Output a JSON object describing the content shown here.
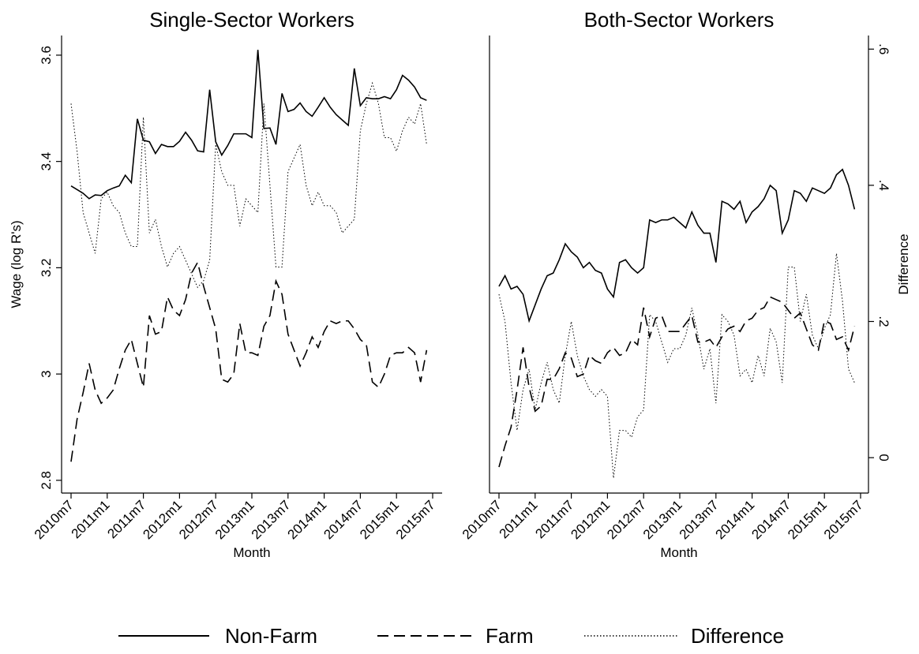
{
  "chart_data": [
    {
      "type": "line",
      "title": "Single-Sector Workers",
      "xlabel": "Month",
      "ylabel": "Wage (log R's)",
      "categories": [
        "2010m7",
        null,
        null,
        null,
        null,
        null,
        "2011m1",
        null,
        null,
        null,
        null,
        null,
        "2011m7",
        null,
        null,
        null,
        null,
        null,
        "2012m1",
        null,
        null,
        null,
        null,
        null,
        "2012m7",
        null,
        null,
        null,
        null,
        null,
        "2013m1",
        null,
        null,
        null,
        null,
        null,
        "2013m7",
        null,
        null,
        null,
        null,
        null,
        "2014m1",
        null,
        null,
        null,
        null,
        null,
        "2014m7",
        null,
        null,
        null,
        null,
        null,
        "2015m1",
        null,
        null,
        null,
        null,
        null,
        "2015m7"
      ],
      "ylim": [
        2.776,
        3.637
      ],
      "yticks": [
        2.8,
        3,
        3.2,
        3.4,
        3.6
      ],
      "y2lim": [
        -0.052,
        0.62
      ],
      "series": [
        {
          "name": "Non-Farm",
          "color": "#000000",
          "dash": "solid",
          "values": [
            3.354,
            3.347,
            3.34,
            3.33,
            3.337,
            3.336,
            3.345,
            3.35,
            3.354,
            3.374,
            3.36,
            3.48,
            3.44,
            3.437,
            3.415,
            3.432,
            3.428,
            3.428,
            3.438,
            3.455,
            3.44,
            3.42,
            3.418,
            3.535,
            3.437,
            3.412,
            3.43,
            3.452,
            3.452,
            3.452,
            3.445,
            3.61,
            3.462,
            3.463,
            3.432,
            3.528,
            3.494,
            3.498,
            3.51,
            3.494,
            3.485,
            3.502,
            3.52,
            3.502,
            3.488,
            3.478,
            3.468,
            3.575,
            3.505,
            3.52,
            3.518,
            3.518,
            3.522,
            3.518,
            3.535,
            3.562,
            3.553,
            3.54,
            3.52,
            3.515,
            null
          ]
        },
        {
          "name": "Farm",
          "color": "#000000",
          "dash": "dashed",
          "values": [
            2.835,
            2.915,
            2.965,
            3.02,
            2.97,
            2.945,
            2.955,
            2.97,
            3.01,
            3.045,
            3.065,
            3.02,
            2.975,
            3.11,
            3.075,
            3.08,
            3.145,
            3.12,
            3.11,
            3.14,
            3.19,
            3.21,
            3.165,
            3.125,
            3.085,
            2.99,
            2.985,
            3.0,
            3.095,
            3.04,
            3.04,
            3.035,
            3.09,
            3.11,
            3.175,
            3.15,
            3.075,
            3.045,
            3.015,
            3.04,
            3.07,
            3.05,
            3.08,
            3.1,
            3.095,
            3.1,
            3.1,
            3.085,
            3.065,
            3.055,
            2.985,
            2.975,
            3.0,
            3.035,
            3.04,
            3.04,
            3.05,
            3.04,
            2.985,
            3.045,
            null
          ]
        },
        {
          "name": "Difference",
          "color": "#000000",
          "dash": "dotted",
          "axis": "y2",
          "values": [
            0.52,
            0.45,
            0.36,
            0.33,
            0.3,
            0.38,
            0.39,
            0.37,
            0.36,
            0.33,
            0.31,
            0.31,
            0.5,
            0.33,
            0.35,
            0.31,
            0.28,
            0.3,
            0.31,
            0.29,
            0.27,
            0.25,
            0.26,
            0.29,
            0.46,
            0.42,
            0.4,
            0.4,
            0.34,
            0.38,
            0.37,
            0.36,
            0.52,
            0.4,
            0.28,
            0.28,
            0.42,
            0.44,
            0.46,
            0.4,
            0.37,
            0.39,
            0.37,
            0.37,
            0.36,
            0.33,
            0.34,
            0.35,
            0.48,
            0.52,
            0.55,
            0.52,
            0.47,
            0.47,
            0.45,
            0.48,
            0.5,
            0.49,
            0.52,
            0.46,
            null
          ]
        }
      ]
    },
    {
      "type": "line",
      "title": "Both-Sector Workers",
      "xlabel": "Month",
      "y2label": "Difference",
      "categories": [
        "2010m7",
        null,
        null,
        null,
        null,
        null,
        "2011m1",
        null,
        null,
        null,
        null,
        null,
        "2011m7",
        null,
        null,
        null,
        null,
        null,
        "2012m1",
        null,
        null,
        null,
        null,
        null,
        "2012m7",
        null,
        null,
        null,
        null,
        null,
        "2013m1",
        null,
        null,
        null,
        null,
        null,
        "2013m7",
        null,
        null,
        null,
        null,
        null,
        "2014m1",
        null,
        null,
        null,
        null,
        null,
        "2014m7",
        null,
        null,
        null,
        null,
        null,
        "2015m1",
        null,
        null,
        null,
        null,
        null,
        "2015m7"
      ],
      "ylim": [
        2.776,
        3.637
      ],
      "y2lim": [
        -0.052,
        0.62
      ],
      "y2ticks": [
        0,
        {
          "value": 0.2,
          "label": ".2"
        },
        {
          "value": 0.4,
          "label": ".4"
        },
        {
          "value": 0.6,
          "label": ".6"
        }
      ],
      "series": [
        {
          "color": "#000000",
          "dash": "solid",
          "values": [
            3.165,
            3.185,
            3.16,
            3.165,
            3.15,
            3.1,
            3.13,
            3.16,
            3.185,
            3.19,
            3.215,
            3.245,
            3.23,
            3.22,
            3.2,
            3.21,
            3.195,
            3.19,
            3.16,
            3.145,
            3.21,
            3.215,
            3.2,
            3.19,
            3.2,
            3.29,
            3.285,
            3.29,
            3.29,
            3.295,
            3.285,
            3.275,
            3.305,
            3.28,
            3.265,
            3.265,
            3.21,
            3.325,
            3.32,
            3.31,
            3.325,
            3.285,
            3.305,
            3.315,
            3.33,
            3.355,
            3.345,
            3.265,
            3.29,
            3.345,
            3.34,
            3.325,
            3.35,
            3.345,
            3.34,
            3.35,
            3.375,
            3.385,
            3.355,
            3.31,
            null
          ]
        },
        {
          "color": "#000000",
          "dash": "dashed",
          "values": [
            2.825,
            2.865,
            2.9,
            2.97,
            3.05,
            2.975,
            2.93,
            2.94,
            2.99,
            2.99,
            3.01,
            3.04,
            3.03,
            2.995,
            3.0,
            3.035,
            3.025,
            3.02,
            3.04,
            3.05,
            3.035,
            3.04,
            3.065,
            3.055,
            3.125,
            3.07,
            3.105,
            3.11,
            3.08,
            3.08,
            3.08,
            3.095,
            3.11,
            3.06,
            3.06,
            3.065,
            3.05,
            3.07,
            3.085,
            3.09,
            3.08,
            3.1,
            3.105,
            3.12,
            3.125,
            3.145,
            3.14,
            3.135,
            3.12,
            3.105,
            3.115,
            3.085,
            3.055,
            3.045,
            3.1,
            3.095,
            3.065,
            3.07,
            3.045,
            3.09,
            null
          ]
        },
        {
          "color": "#000000",
          "dash": "dotted",
          "axis": "y2",
          "values": [
            0.24,
            0.2,
            0.11,
            0.04,
            0.1,
            0.13,
            0.07,
            0.11,
            0.14,
            0.1,
            0.08,
            0.15,
            0.2,
            0.15,
            0.12,
            0.1,
            0.09,
            0.1,
            0.09,
            -0.03,
            0.04,
            0.04,
            0.03,
            0.06,
            0.07,
            0.21,
            0.2,
            0.17,
            0.14,
            0.16,
            0.16,
            0.18,
            0.22,
            0.18,
            0.13,
            0.16,
            0.08,
            0.21,
            0.2,
            0.18,
            0.12,
            0.13,
            0.11,
            0.15,
            0.12,
            0.19,
            0.17,
            0.11,
            0.28,
            0.28,
            0.2,
            0.24,
            0.18,
            0.16,
            0.19,
            0.21,
            0.3,
            0.23,
            0.13,
            0.11,
            null
          ]
        }
      ]
    }
  ]
}
